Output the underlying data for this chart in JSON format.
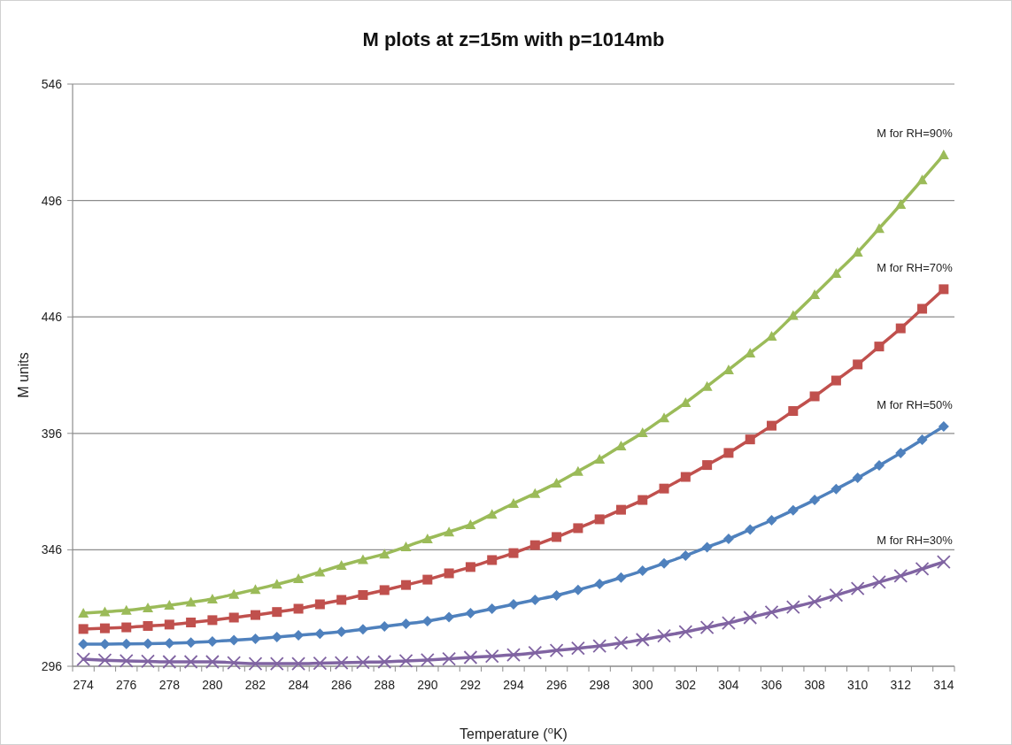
{
  "chart_data": {
    "type": "line",
    "title": "M plots at z=15m with p=1014mb",
    "xlabel": "Temperature ($^{o}$K)",
    "ylabel": "M units",
    "categories": [
      "274",
      null,
      "276",
      null,
      "278",
      null,
      "280",
      null,
      "282",
      null,
      "284",
      null,
      "286",
      null,
      "288",
      null,
      "290",
      null,
      "292",
      null,
      "294",
      null,
      "296",
      null,
      "298",
      null,
      "300",
      null,
      "302",
      null,
      "304",
      null,
      "306",
      null,
      "308",
      null,
      "310",
      null,
      "312",
      null,
      "314"
    ],
    "ylim": [
      296,
      546
    ],
    "yticks": [
      296,
      346,
      396,
      446,
      496,
      546
    ],
    "grid": "y",
    "legend": false,
    "series": [
      {
        "name": "M for RH=90%",
        "color": "#9bbb59",
        "marker": "triangle",
        "values": [
          318.8,
          319.4,
          320,
          321.1,
          322.2,
          323.5,
          324.9,
          326.9,
          329,
          331.2,
          333.6,
          336.5,
          339.3,
          341.8,
          344.2,
          347.3,
          350.7,
          353.7,
          356.8,
          361.3,
          365.9,
          370.2,
          374.6,
          379.7,
          384.9,
          390.6,
          396.3,
          402.7,
          409.2,
          416.2,
          423.3,
          430.5,
          437.7,
          446.6,
          455.6,
          464.7,
          473.8,
          484,
          494.3,
          504.9,
          515.6
        ]
      },
      {
        "name": "M for RH=70%",
        "color": "#c0504d",
        "marker": "square",
        "values": [
          312,
          312.3,
          312.7,
          313.3,
          313.9,
          314.8,
          315.8,
          316.9,
          318,
          319.3,
          320.7,
          322.6,
          324.5,
          326.6,
          328.7,
          330.9,
          333.2,
          335.9,
          338.6,
          341.6,
          344.6,
          348,
          351.5,
          355.3,
          359.1,
          363.2,
          367.4,
          372.3,
          377.3,
          382.4,
          387.6,
          393.4,
          399.3,
          405.6,
          411.9,
          418.7,
          425.6,
          433.3,
          441.1,
          449.5,
          457.9
        ]
      },
      {
        "name": "M for RH=50%",
        "color": "#4f81bd",
        "marker": "diamond",
        "values": [
          305.5,
          305.5,
          305.6,
          305.7,
          305.9,
          306.2,
          306.6,
          307.2,
          307.8,
          308.5,
          309.3,
          310,
          310.8,
          311.9,
          313.1,
          314.2,
          315.4,
          317.1,
          318.8,
          320.7,
          322.6,
          324.5,
          326.4,
          328.8,
          331.3,
          334.1,
          337,
          340.2,
          343.5,
          347.1,
          350.7,
          354.7,
          358.7,
          363,
          367.4,
          372.1,
          376.9,
          382.2,
          387.6,
          393.3,
          399
        ]
      },
      {
        "name": "M for RH=30%",
        "color": "#8064a2",
        "marker": "cross",
        "values": [
          299,
          298.6,
          298.3,
          298.1,
          297.9,
          297.9,
          297.9,
          297.5,
          297.1,
          297.1,
          297.1,
          297.3,
          297.5,
          297.7,
          297.9,
          298.3,
          298.7,
          299.2,
          299.8,
          300.3,
          300.9,
          301.8,
          302.8,
          303.7,
          304.7,
          306,
          307.4,
          309.1,
          310.8,
          312.7,
          314.6,
          316.9,
          319.2,
          321.4,
          323.7,
          326.5,
          329.4,
          332.1,
          334.8,
          337.8,
          340.8
        ]
      }
    ]
  }
}
